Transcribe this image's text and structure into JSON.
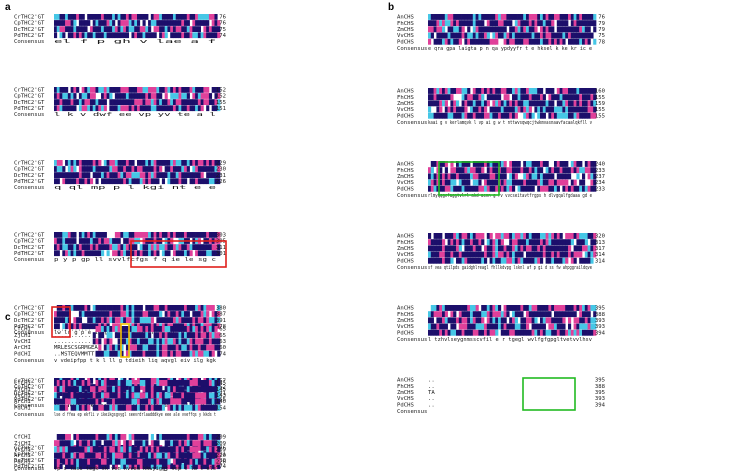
{
  "colors": {
    "identical": "#1c0f6b",
    "similar": "#e0409a",
    "conserved": "#46c7e6",
    "red_box": "#e0201c",
    "green_box": "#22bb22",
    "yellow_box": "#f2c200"
  },
  "panels": [
    {
      "label": "a",
      "consensus_label": "Consensus",
      "blocks": [
        {
          "names": [
            "CrTHC2'GT",
            "CpTHC2'GT",
            "DcTHC2'GT",
            "PdTHC2'GT"
          ],
          "ends": [
            "76",
            "76",
            "75",
            "74"
          ],
          "consensus": "el f p  gh    v lae                    a     f"
        },
        {
          "names": [
            "CrTHC2'GT",
            "CpTHC2'GT",
            "DcTHC2'GT",
            "PdTHC2'GT"
          ],
          "ends": [
            "152",
            "152",
            "155",
            "151"
          ],
          "consensus": "         l  k  v             dwf     ee vp yv  te a l"
        },
        {
          "names": [
            "CrTHC2'GT",
            "CpTHC2'GT",
            "DcTHC2'GT",
            "PdTHC2'GT"
          ],
          "ends": [
            "229",
            "230",
            "231",
            "226"
          ],
          "consensus": "q              ql    mp   p        l    kgi nt e e"
        },
        {
          "names": [
            "CrTHC2'GT",
            "CpTHC2'GT",
            "DcTHC2'GT",
            "PdTHC2'GT"
          ],
          "ends": [
            "303",
            "305",
            "311",
            "301"
          ],
          "consensus": "   p    y p  gp ll          svvlfcfgs f q  ie le sg c"
        },
        {
          "names": [
            "CrTHC2'GT",
            "CpTHC2'GT",
            "DcTHC2'GT",
            "PdTHC2'GT"
          ],
          "ends": [
            "380",
            "387",
            "391",
            "378"
          ],
          "consensus": "lw lr g  p    e      ipegf  t  r  gl  qgw  h a  gpl hcgwns eggw"
        },
        {
          "names": [
            "CrTHC2'GT",
            "CpTHC2'GT",
            "DcTHC2'GT",
            "PdTHC2'GT"
          ],
          "ends": [
            "457",
            "462",
            "471",
            "455"
          ],
          "consensus": "p  aeq  ne v  l a ei dy             e  i  lm        k m"
        },
        {
          "names": [
            "CrTHC2'GT",
            "CpTHC2'GT",
            "DcTHC2'GT",
            "PdTHC2'GT"
          ],
          "ends": [
            "476",
            "481",
            "480",
            "474"
          ],
          "consensus": "ggss     i v"
        }
      ]
    },
    {
      "label": "b",
      "consensus_label": "Consensus",
      "blocks": [
        {
          "names": [
            "AnCHS",
            "FhCHS",
            "ZmCHS",
            "VvCHS",
            "PdCHS"
          ],
          "ends": [
            "76",
            "79",
            "79",
            "75",
            "78"
          ],
          "consensus": "   e  qra gpa  laigta p  n   qa ypdyyfr t  e   hksel k ke  kr  ic e"
        },
        {
          "names": [
            "AnCHS",
            "FhCHS",
            "ZmCHS",
            "VvCHS",
            "PdCHS"
          ],
          "ends": [
            "160",
            "155",
            "159",
            "155",
            "155"
          ],
          "consensus": "  kaai g   v   kerlamqvk l vp ai   g w  t  nttwvsqwqcjtwkmvasnaavfacaalqkfll v"
        },
        {
          "names": [
            "AnCHS",
            "FhCHS",
            "ZmCHS",
            "VvCHS",
            "PdCHS"
          ],
          "ends": [
            "240",
            "233",
            "237",
            "234",
            "233"
          ],
          "consensus": "rlmyqqgcfaggtvlrl akd aenn g rv vvcseitavtfrgps  h dlvgqalfgdaaa   gd    e"
        },
        {
          "names": [
            "AnCHS",
            "FhCHS",
            "ZmCHS",
            "VvCHS",
            "PdCHS"
          ],
          "ends": [
            "320",
            "313",
            "317",
            "314",
            "314"
          ],
          "consensus": "sf  vea qtilpds gaidghlreagl fhllkdvpg lsknl    af p gi d ss fw  ahpggraildqve"
        },
        {
          "names": [
            "AnCHS",
            "FhCHS",
            "ZmCHS",
            "VvCHS",
            "PdCHS"
          ],
          "ends": [
            "395",
            "388",
            "393",
            "393",
            "394"
          ],
          "consensus": "  l  tzhvlseygnmsscvfil e r          tgegl  wvlfgfgpgltvetvvlhsv"
        },
        {
          "names": [
            "AnCHS",
            "FhCHS",
            "ZmCHS",
            "VvCHS",
            "PdCHS"
          ],
          "ends": [
            "395",
            "388",
            "395",
            "393",
            "394"
          ],
          "residues": [
            "..",
            "..",
            "TA",
            "..",
            ".."
          ],
          "consensus": ""
        }
      ]
    },
    {
      "label": "c",
      "consensus_label": "Consensus",
      "blocks": [
        {
          "names": [
            "CfCHI",
            "ZjCHI",
            "VvCHI",
            "ArCHI",
            "PdCHI"
          ],
          "ends": [
            "65",
            "65",
            "63",
            "60",
            "74"
          ],
          "residues": [
            "...........",
            "...........",
            "...........",
            "MRLESCSGRMGEA",
            "..MSTEQVMMTT"
          ],
          "consensus": "     v  vdeipfpp  t k l ll  g tdieih liq  aqvgl  eiv ilg kgk"
        },
        {
          "names": [
            "CfCHI",
            "ZjCHI",
            "VvCHI",
            "ArCHI",
            "PdCHI"
          ],
          "ends": [
            "145",
            "145",
            "143",
            "140",
            "154"
          ],
          "consensus": "lse d ffea  ep ekfli  v ikeikgsgvygl seevrdrlaadddkye  eee ale vveffqs y kkds t"
        },
        {
          "names": [
            "CfCHI",
            "ZjCHI",
            "VvCHI",
            "ArCHI",
            "PdCHI"
          ],
          "ends": [
            "209",
            "209",
            "209",
            "220",
            "220"
          ],
          "consensus": "fp  s tasi   tegk  sk  ven nvvem kkwyiggt vsp t  la l els"
        }
      ]
    }
  ]
}
